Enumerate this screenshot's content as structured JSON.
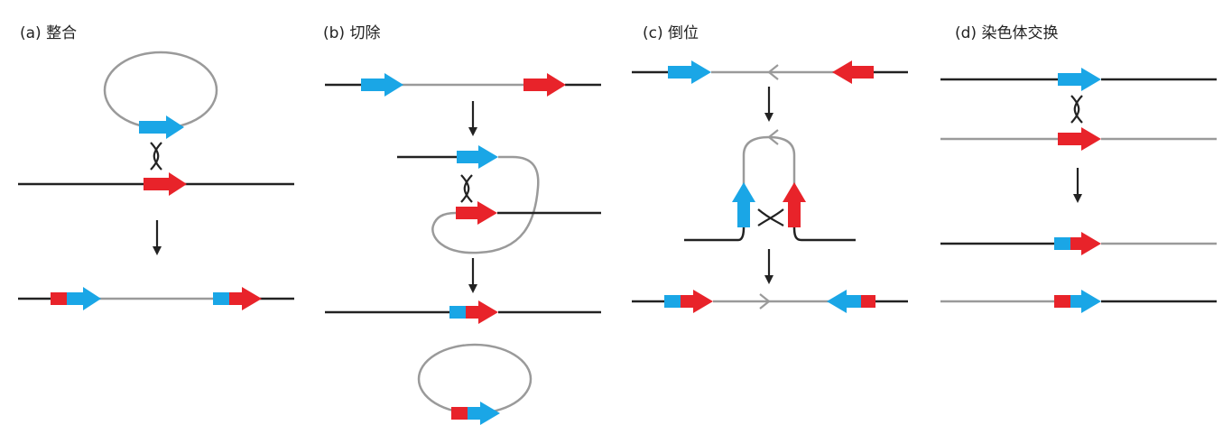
{
  "panels": {
    "a": {
      "label": "(a) 整合"
    },
    "b": {
      "label": "(b) 切除"
    },
    "c": {
      "label": "(c) 倒位"
    },
    "d": {
      "label": "(d) 染色体交换"
    }
  },
  "colors": {
    "black_dna": "#222222",
    "gray_dna": "#9a9a9a",
    "blue_site": "#1aa6e6",
    "red_site": "#e8232a"
  }
}
